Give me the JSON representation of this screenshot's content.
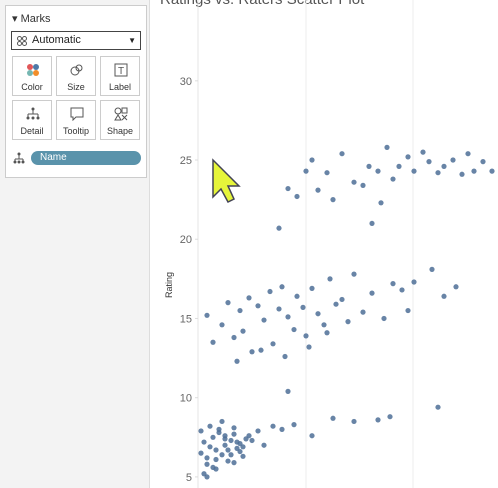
{
  "marks_panel": {
    "title": "Marks",
    "mark_type": "Automatic",
    "buttons": [
      "Color",
      "Size",
      "Label",
      "Detail",
      "Tooltip",
      "Shape"
    ],
    "field": "Name"
  },
  "chart_data": {
    "type": "scatter",
    "title": "Ratings vs. Raters Scatter Plot",
    "y_label": "Rating",
    "x": [
      1,
      2,
      3,
      4,
      5,
      6,
      7,
      8,
      9,
      10,
      11,
      12,
      13,
      14,
      15,
      16,
      2,
      4,
      6,
      8,
      10,
      12,
      14,
      1,
      3,
      5,
      7,
      9,
      11,
      13,
      3,
      6,
      9,
      12,
      15,
      18,
      20,
      22,
      25,
      17,
      28,
      32,
      38,
      45,
      52,
      60,
      64,
      80,
      30,
      3,
      5,
      8,
      10,
      12,
      14,
      15,
      17,
      18,
      20,
      22,
      24,
      25,
      27,
      28,
      30,
      32,
      33,
      35,
      37,
      38,
      40,
      42,
      44,
      46,
      48,
      50,
      52,
      55,
      58,
      62,
      65,
      68,
      70,
      72,
      78,
      82,
      86,
      13,
      21,
      29,
      36,
      43,
      27,
      30,
      33,
      36,
      38,
      40,
      43,
      45,
      48,
      52,
      55,
      57,
      58,
      60,
      61,
      63,
      65,
      67,
      70,
      72,
      75,
      77,
      80,
      82,
      85,
      88,
      90,
      92,
      95,
      98
    ],
    "values": [
      6.5,
      7.2,
      5.8,
      6.9,
      7.5,
      6.1,
      7.8,
      6.4,
      7.0,
      6.7,
      7.3,
      5.9,
      6.8,
      7.1,
      6.3,
      7.4,
      5.2,
      8.2,
      5.5,
      8.5,
      6.0,
      7.7,
      6.6,
      7.9,
      6.2,
      5.6,
      8.0,
      7.6,
      6.4,
      7.2,
      5.0,
      6.7,
      7.4,
      8.1,
      6.9,
      7.3,
      7.9,
      7.0,
      8.2,
      7.6,
      8.0,
      8.3,
      7.6,
      8.7,
      8.5,
      8.6,
      8.8,
      9.4,
      10.4,
      15.2,
      13.5,
      14.6,
      16.0,
      13.8,
      15.5,
      14.2,
      16.3,
      12.9,
      15.8,
      14.9,
      16.7,
      13.4,
      15.6,
      17.0,
      15.1,
      14.3,
      16.4,
      15.7,
      13.2,
      16.9,
      15.3,
      14.6,
      17.5,
      15.9,
      16.2,
      14.8,
      17.8,
      15.4,
      16.6,
      15.0,
      17.2,
      16.8,
      15.5,
      17.3,
      18.1,
      16.4,
      17.0,
      12.3,
      13.0,
      12.6,
      13.9,
      14.1,
      20.7,
      23.2,
      22.7,
      24.3,
      25.0,
      23.1,
      24.2,
      22.5,
      25.4,
      23.6,
      23.4,
      24.6,
      21.0,
      24.3,
      22.3,
      25.8,
      23.8,
      24.6,
      25.2,
      24.3,
      25.5,
      24.9,
      24.2,
      24.6,
      25.0,
      24.1,
      25.4,
      24.3,
      24.9,
      24.3
    ],
    "color": "#4e6f96",
    "xlim": [
      0,
      100
    ],
    "ylim": [
      4.3,
      35.1
    ],
    "yticks": [
      5,
      10,
      15,
      20,
      25,
      30
    ]
  }
}
